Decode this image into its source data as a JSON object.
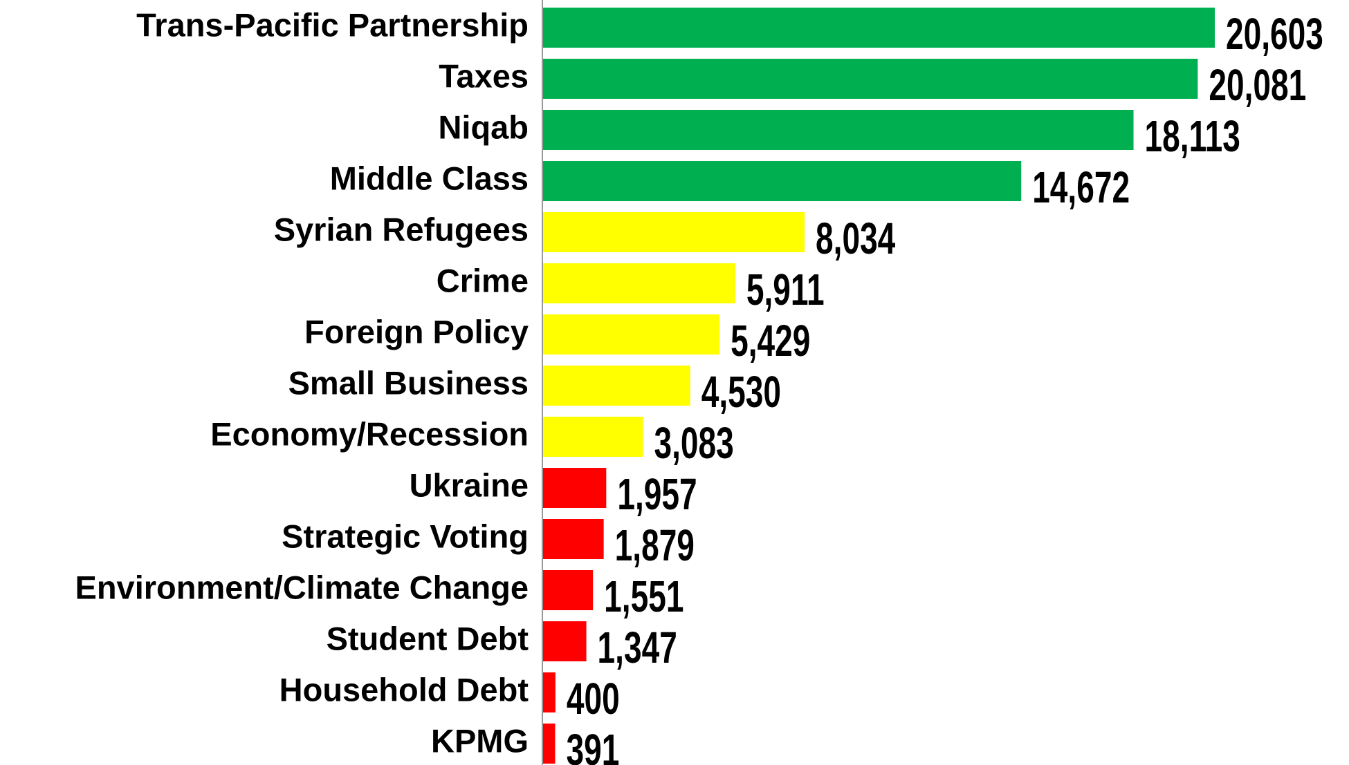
{
  "chart_data": {
    "type": "hbar",
    "categories": [
      "Trans-Pacific Partnership",
      "Taxes",
      "Niqab",
      "Middle Class",
      "Syrian Refugees",
      "Crime",
      "Foreign Policy",
      "Small Business",
      "Economy/Recession",
      "Ukraine",
      "Strategic Voting",
      "Environment/Climate Change",
      "Student Debt",
      "Household Debt",
      "KPMG"
    ],
    "values": [
      20603,
      20081,
      18113,
      14672,
      8034,
      5911,
      5429,
      4530,
      3083,
      1957,
      1879,
      1551,
      1347,
      400,
      391
    ],
    "value_labels": [
      "20,603",
      "20,081",
      "18,113",
      "14,672",
      "8,034",
      "5,911",
      "5,429",
      "4,530",
      "3,083",
      "1,957",
      "1,879",
      "1,551",
      "1,347",
      "400",
      "391"
    ],
    "colors": [
      "#00b050",
      "#00b050",
      "#00b050",
      "#00b050",
      "#ffff00",
      "#ffff00",
      "#ffff00",
      "#ffff00",
      "#ffff00",
      "#ff0000",
      "#ff0000",
      "#ff0000",
      "#ff0000",
      "#ff0000",
      "#ff0000"
    ]
  }
}
